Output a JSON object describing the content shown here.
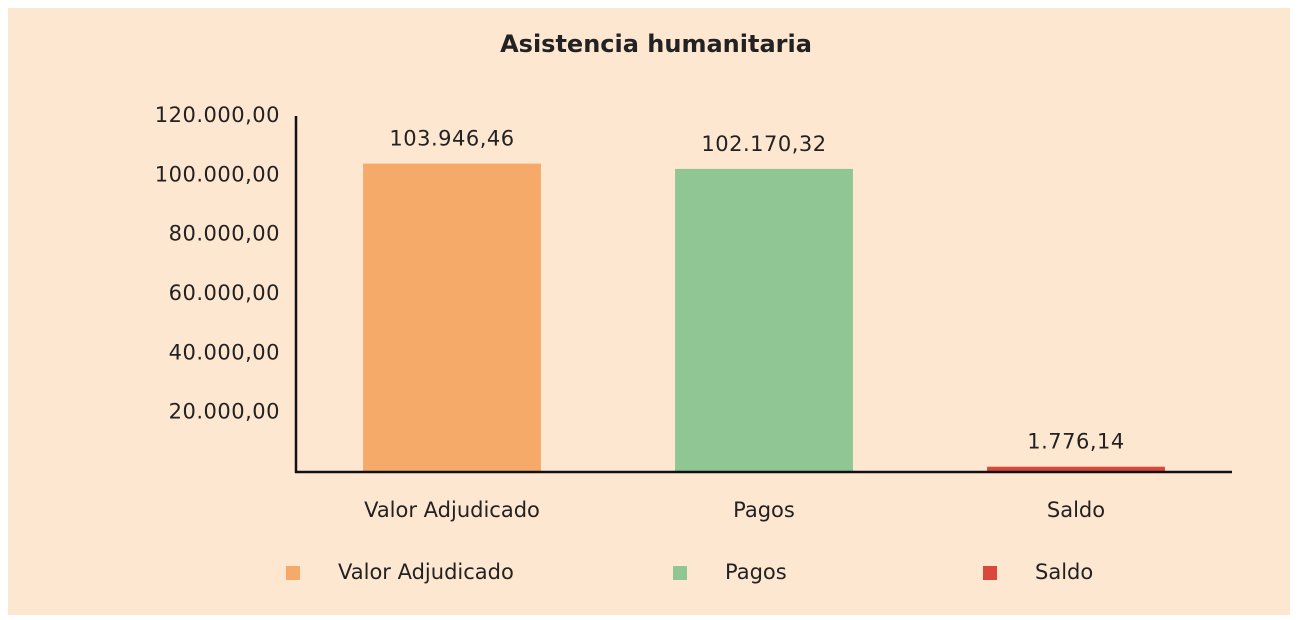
{
  "chart_data": {
    "type": "bar",
    "title": "Asistencia humanitaria",
    "categories": [
      "Valor Adjudicado",
      "Pagos",
      "Saldo"
    ],
    "values": [
      103946.46,
      102170.32,
      1776.14
    ],
    "value_labels": [
      "103.946,46",
      "102.170,32",
      "1.776,14"
    ],
    "colors": [
      "#f5aa6a",
      "#8fc693",
      "#d9483b"
    ],
    "ylim": [
      0,
      120000
    ],
    "yticks": [
      {
        "value": 20000,
        "label": "20.000,00"
      },
      {
        "value": 40000,
        "label": "40.000,00"
      },
      {
        "value": 60000,
        "label": "60.000,00"
      },
      {
        "value": 80000,
        "label": "80.000,00"
      },
      {
        "value": 100000,
        "label": "100.000,00"
      },
      {
        "value": 120000,
        "label": "120.000,00"
      }
    ],
    "grid": false
  }
}
